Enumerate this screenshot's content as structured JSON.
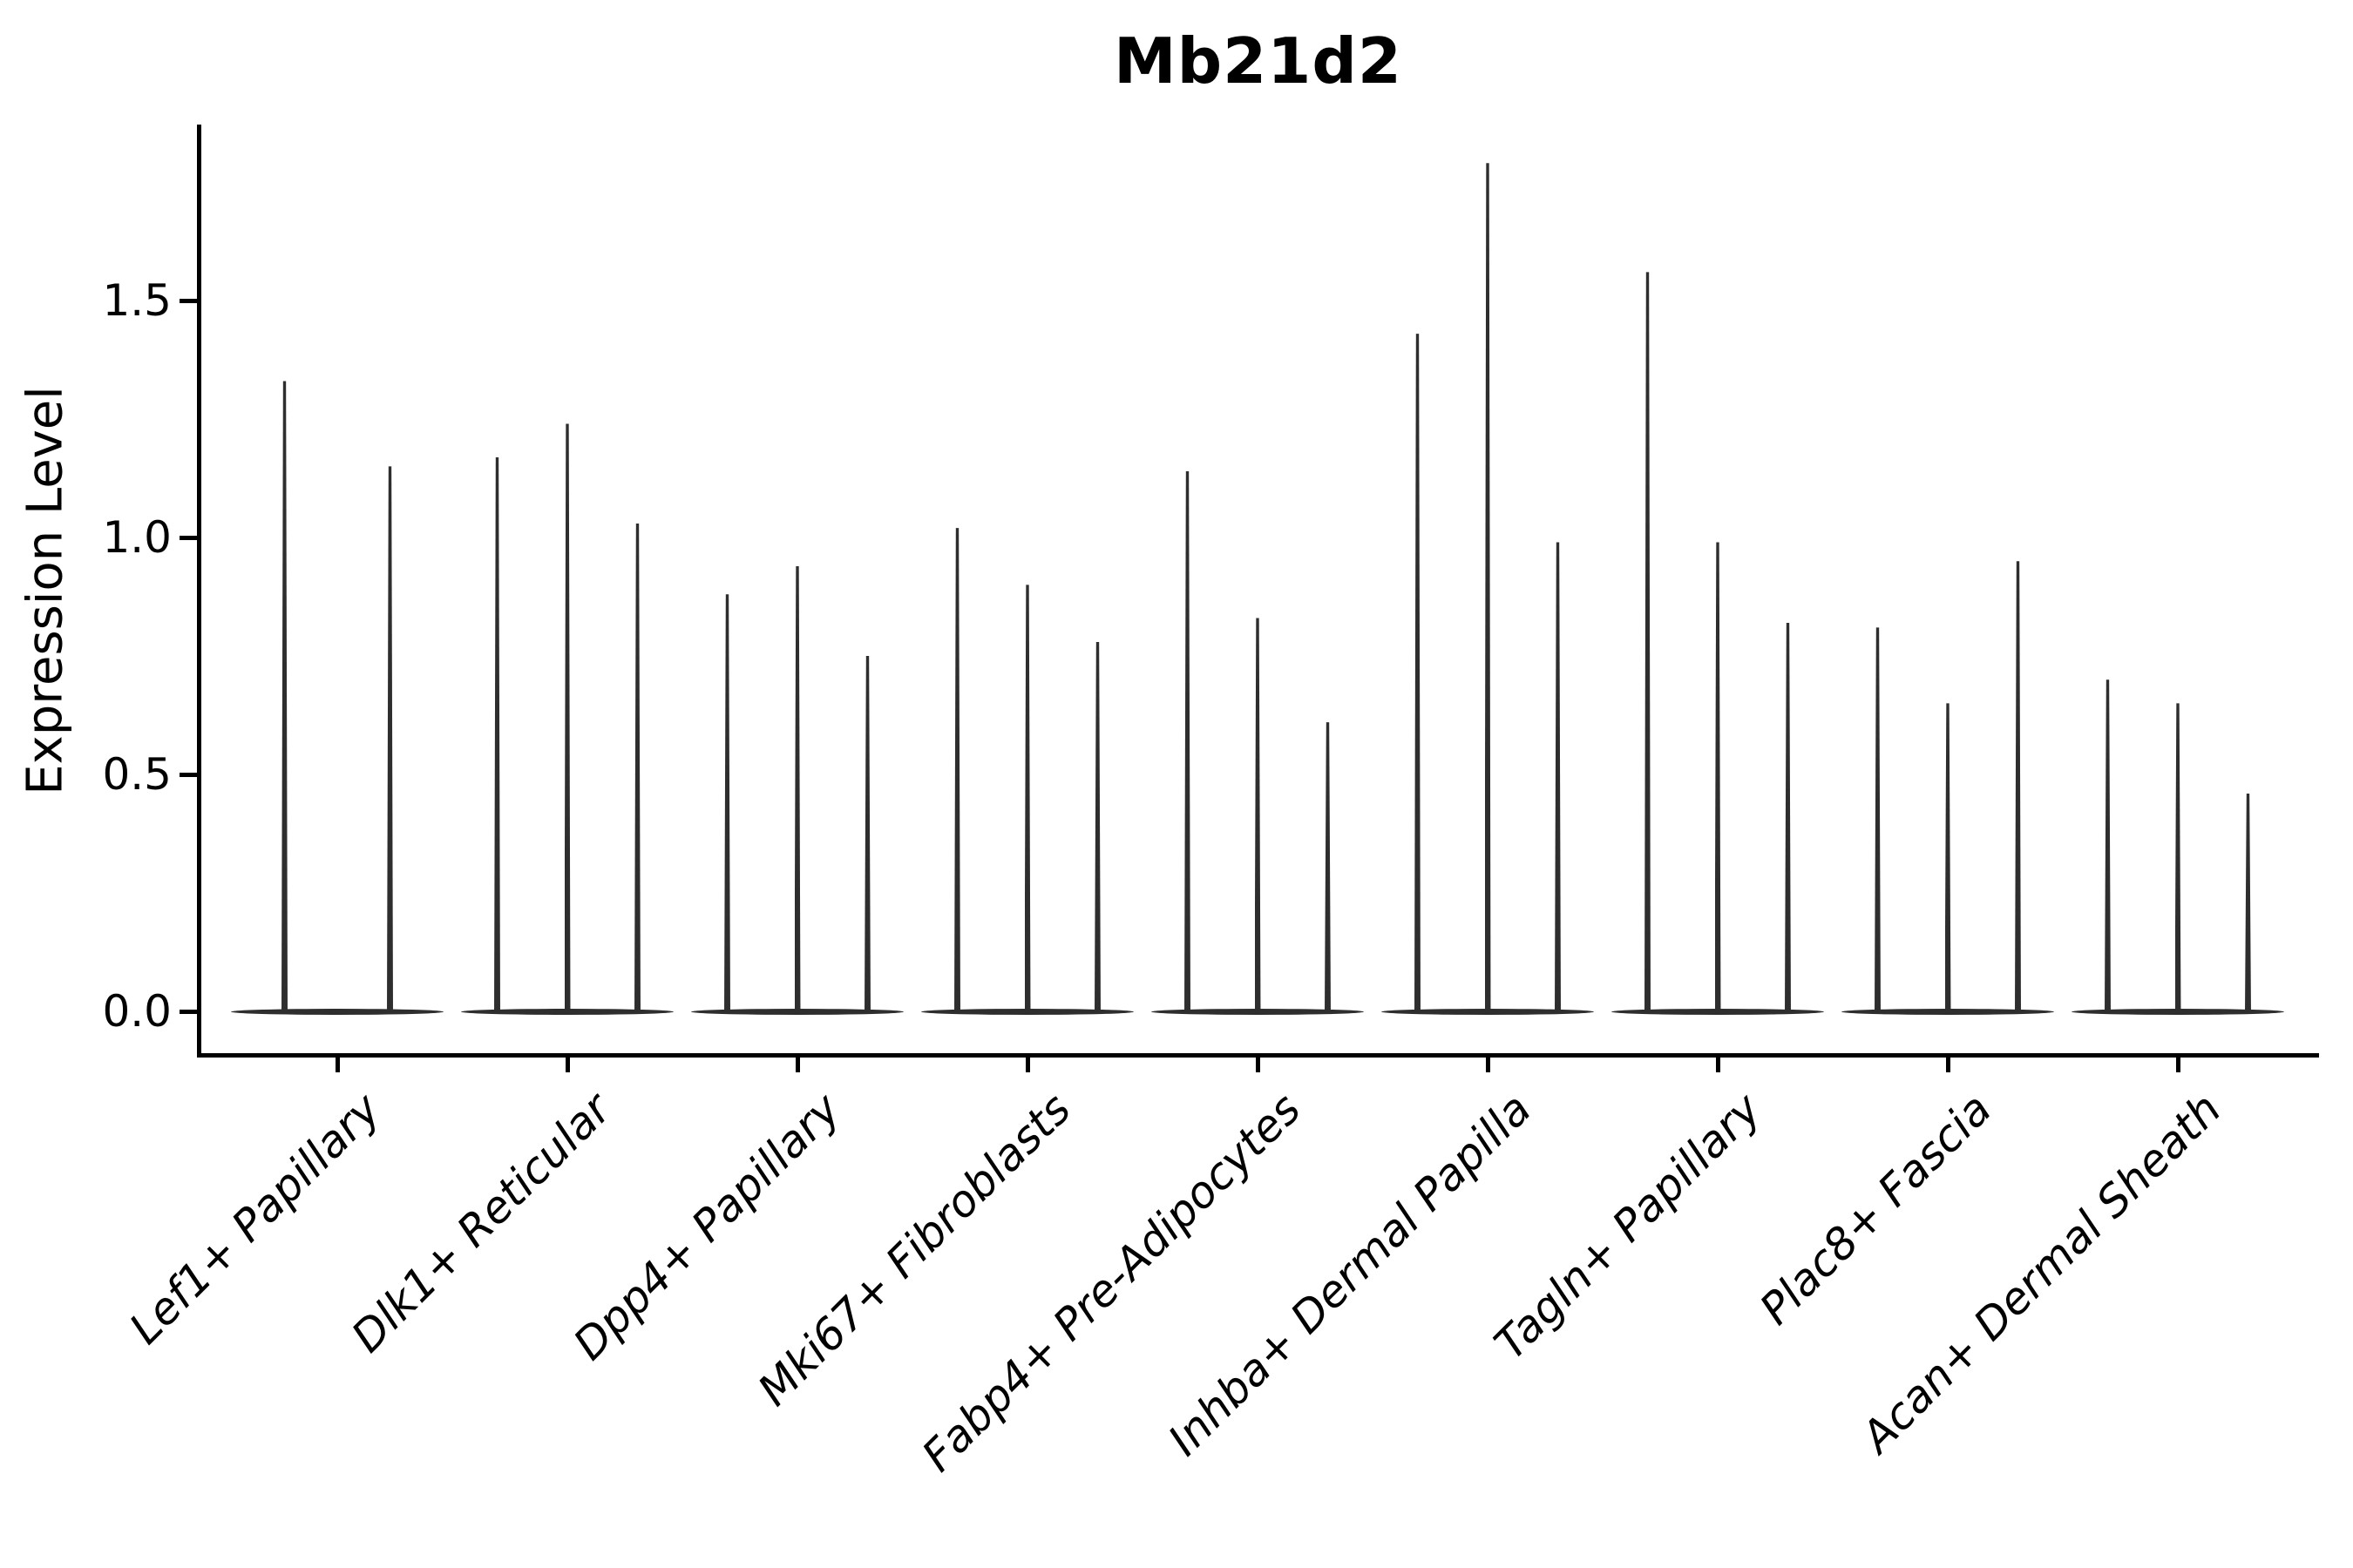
{
  "title": "Mb21d2",
  "ylabel": "Expression Level",
  "colors": {
    "background": "#ffffff",
    "violin": "#2e2e2e",
    "axis": "#000000",
    "text": "#000000"
  },
  "chart_data": {
    "type": "violin",
    "title": "Mb21d2",
    "xlabel": "",
    "ylabel": "Expression Level",
    "ylim": [
      0,
      1.87
    ],
    "yticks": [
      0.0,
      0.5,
      1.0,
      1.5
    ],
    "ytick_labels": [
      "0.0",
      "0.5",
      "1.0",
      "1.5"
    ],
    "grid": false,
    "legend": "none",
    "categories": [
      "Lef1+ Papillary",
      "Dlk1+ Reticular",
      "Dpp4+ Papillary",
      "Mki67+ Fibroblasts",
      "Fabp4+ Pre-Adipocytes",
      "Inhba+ Dermal Papilla",
      "Tagln+ Papillary",
      "Plac8+ Fascia",
      "Acan+ Dermal Sheath"
    ],
    "groups": [
      {
        "category": "Lef1+ Papillary",
        "violin_max_expression": [
          1.33,
          1.15
        ]
      },
      {
        "category": "Dlk1+ Reticular",
        "violin_max_expression": [
          1.17,
          1.24,
          1.03
        ]
      },
      {
        "category": "Dpp4+ Papillary",
        "violin_max_expression": [
          0.88,
          0.94,
          0.75
        ]
      },
      {
        "category": "Mki67+ Fibroblasts",
        "violin_max_expression": [
          1.02,
          0.9,
          0.78
        ]
      },
      {
        "category": "Fabp4+ Pre-Adipocytes",
        "violin_max_expression": [
          1.14,
          0.83,
          0.61
        ]
      },
      {
        "category": "Inhba+ Dermal Papilla",
        "violin_max_expression": [
          1.43,
          1.79,
          0.99
        ]
      },
      {
        "category": "Tagln+ Papillary",
        "violin_max_expression": [
          1.56,
          0.99,
          0.82
        ]
      },
      {
        "category": "Plac8+ Fascia",
        "violin_max_expression": [
          0.81,
          0.65,
          0.95
        ]
      },
      {
        "category": "Acan+ Dermal Sheath",
        "violin_max_expression": [
          0.7,
          0.65,
          0.46
        ]
      }
    ],
    "shape_note": "needle-thin violins: nearly all density at expression 0 (flat base), single thin spike up to the max expression value"
  }
}
